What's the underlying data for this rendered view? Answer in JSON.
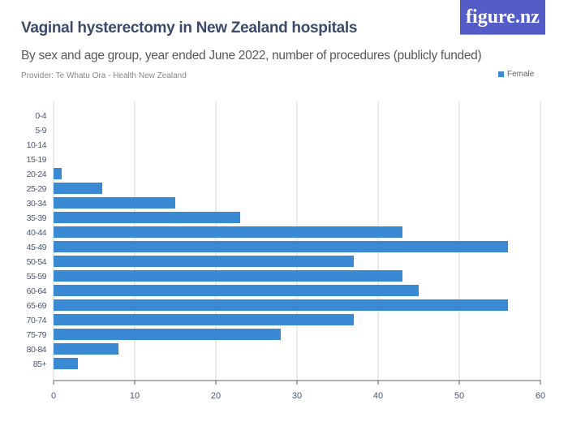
{
  "header": {
    "title": "Vaginal hysterectomy in New Zealand hospitals",
    "subtitle": "By sex and age group, year ended June 2022, number of procedures (publicly funded)",
    "provider": "Provider: Te Whatu Ora - Health New Zealand",
    "logo": "figure.nz"
  },
  "colors": {
    "bar": "#3a89d3",
    "logo_bg": "#545dc7",
    "title": "#3b4a6b"
  },
  "chart_data": {
    "type": "bar",
    "orientation": "horizontal",
    "title": "Vaginal hysterectomy in New Zealand hospitals",
    "categories": [
      "0-4",
      "5-9",
      "10-14",
      "15-19",
      "20-24",
      "25-29",
      "30-34",
      "35-39",
      "40-44",
      "45-49",
      "50-54",
      "55-59",
      "60-64",
      "65-69",
      "70-74",
      "75-79",
      "80-84",
      "85+"
    ],
    "series": [
      {
        "name": "Female",
        "values": [
          0,
          0,
          0,
          0,
          1,
          6,
          15,
          23,
          43,
          56,
          37,
          43,
          45,
          56,
          37,
          28,
          8,
          3
        ]
      }
    ],
    "xlim": [
      0,
      60
    ],
    "xticks": [
      0,
      10,
      20,
      30,
      40,
      50,
      60
    ],
    "grid": true,
    "legend_position": "top-right"
  }
}
